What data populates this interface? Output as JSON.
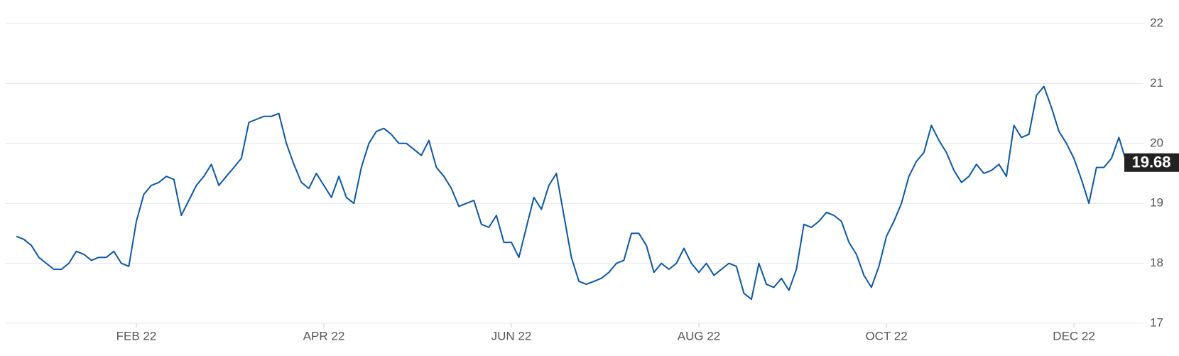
{
  "chart_data": {
    "type": "line",
    "series": [
      {
        "name": null,
        "color": "#0b57a4",
        "values": [
          18.45,
          18.4,
          18.3,
          18.1,
          18.0,
          17.9,
          17.9,
          18.0,
          18.2,
          18.15,
          18.05,
          18.1,
          18.1,
          18.2,
          18.0,
          17.95,
          18.7,
          19.15,
          19.3,
          19.35,
          19.45,
          19.4,
          18.8,
          19.05,
          19.3,
          19.45,
          19.65,
          19.3,
          19.45,
          19.6,
          19.75,
          20.35,
          20.4,
          20.45,
          20.45,
          20.5,
          20.0,
          19.65,
          19.35,
          19.25,
          19.5,
          19.3,
          19.1,
          19.45,
          19.1,
          19.0,
          19.6,
          20.0,
          20.2,
          20.25,
          20.15,
          20.0,
          20.0,
          19.9,
          19.8,
          20.05,
          19.6,
          19.45,
          19.25,
          18.95,
          19.0,
          19.05,
          18.65,
          18.6,
          18.8,
          18.35,
          18.35,
          18.1,
          18.6,
          19.1,
          18.9,
          19.3,
          19.5,
          18.8,
          18.1,
          17.7,
          17.65,
          17.7,
          17.75,
          17.85,
          18.0,
          18.05,
          18.5,
          18.5,
          18.3,
          17.85,
          18.0,
          17.9,
          18.0,
          18.25,
          18.0,
          17.85,
          18.0,
          17.8,
          17.9,
          18.0,
          17.95,
          17.5,
          17.4,
          18.0,
          17.65,
          17.6,
          17.75,
          17.55,
          17.9,
          18.65,
          18.6,
          18.7,
          18.85,
          18.8,
          18.7,
          18.35,
          18.15,
          17.8,
          17.6,
          17.95,
          18.45,
          18.7,
          19.0,
          19.45,
          19.7,
          19.85,
          20.3,
          20.05,
          19.85,
          19.55,
          19.35,
          19.45,
          19.65,
          19.5,
          19.55,
          19.65,
          19.45,
          20.3,
          20.1,
          20.15,
          20.8,
          20.95,
          20.6,
          20.2,
          20.0,
          19.75,
          19.4,
          19.0,
          19.6,
          19.6,
          19.75,
          20.1,
          19.68
        ]
      }
    ],
    "xlim": [
      0,
      148
    ],
    "xticks": [
      {
        "value": 16,
        "label": "FEB 22"
      },
      {
        "value": 41,
        "label": "APR 22"
      },
      {
        "value": 66,
        "label": "JUN 22"
      },
      {
        "value": 91,
        "label": "AUG 22"
      },
      {
        "value": 116,
        "label": "OCT 22"
      },
      {
        "value": 141,
        "label": "DEC 22"
      }
    ],
    "ylim": [
      17,
      22
    ],
    "yticks": [
      17,
      18,
      19,
      20,
      21,
      22
    ],
    "grid": true
  }
}
